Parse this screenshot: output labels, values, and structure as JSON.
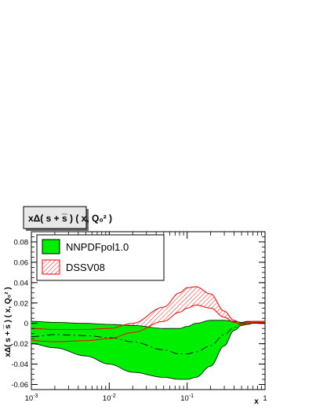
{
  "chart_data": {
    "type": "line",
    "title": "xΔ( s + s̅ ) ( x, Q₀² )",
    "xlabel": "x",
    "ylabel": "xΔ( s + s̅ ) ( x, Q₀² )",
    "xscale": "log",
    "xlim": [
      0.001,
      1
    ],
    "ylim": [
      -0.065,
      0.09
    ],
    "grid": false,
    "legend_position": "top-left",
    "x_ticks": [
      {
        "value": 0.001,
        "base": "10",
        "exp": "-3"
      },
      {
        "value": 0.01,
        "base": "10",
        "exp": "-2"
      },
      {
        "value": 0.1,
        "base": "10",
        "exp": "-1"
      },
      {
        "value": 1,
        "base": "1",
        "exp": ""
      }
    ],
    "y_ticks": [
      {
        "value": 0.08,
        "label": "0.08"
      },
      {
        "value": 0.06,
        "label": "0.06"
      },
      {
        "value": 0.04,
        "label": "0.04"
      },
      {
        "value": 0.02,
        "label": "0.02"
      },
      {
        "value": 0,
        "label": "0"
      },
      {
        "value": -0.02,
        "label": "-0.02"
      },
      {
        "value": -0.04,
        "label": "-0.04"
      },
      {
        "value": -0.06,
        "label": "-0.06"
      }
    ],
    "x": [
      0.001,
      0.002,
      0.005,
      0.01,
      0.02,
      0.05,
      0.08,
      0.1,
      0.13,
      0.2,
      0.3,
      0.4,
      0.5,
      0.6,
      0.7,
      0.8,
      1.0
    ],
    "series": [
      {
        "name": "NNPDFpol1.0",
        "color": "#00ee00",
        "style": "band-solid",
        "central": [
          -0.013,
          -0.011,
          -0.012,
          -0.014,
          -0.018,
          -0.026,
          -0.03,
          -0.03,
          -0.028,
          -0.022,
          -0.011,
          -0.004,
          0.0,
          0.0,
          0.001,
          0.001,
          0.001
        ],
        "upper": [
          0.002,
          0.001,
          0.0,
          -0.001,
          -0.002,
          -0.005,
          -0.005,
          -0.003,
          0.0,
          0.003,
          0.003,
          0.002,
          0.001,
          0.002,
          0.002,
          0.002,
          0.002
        ],
        "lower": [
          -0.02,
          -0.024,
          -0.032,
          -0.04,
          -0.048,
          -0.053,
          -0.055,
          -0.055,
          -0.053,
          -0.042,
          -0.022,
          -0.007,
          -0.002,
          -0.001,
          0.0,
          0.0,
          0.0
        ]
      },
      {
        "name": "DSSV08",
        "color": "#ff0000",
        "style": "band-hatched",
        "upper": [
          -0.005,
          -0.006,
          -0.006,
          -0.005,
          0.0,
          0.016,
          0.03,
          0.035,
          0.036,
          0.029,
          0.012,
          0.003,
          0.0,
          0.001,
          0.002,
          0.002,
          0.002
        ],
        "lower": [
          -0.017,
          -0.018,
          -0.017,
          -0.015,
          -0.009,
          0.002,
          0.011,
          0.015,
          0.018,
          0.015,
          0.006,
          0.001,
          -0.001,
          0.0,
          0.001,
          0.001,
          0.001
        ]
      }
    ]
  }
}
